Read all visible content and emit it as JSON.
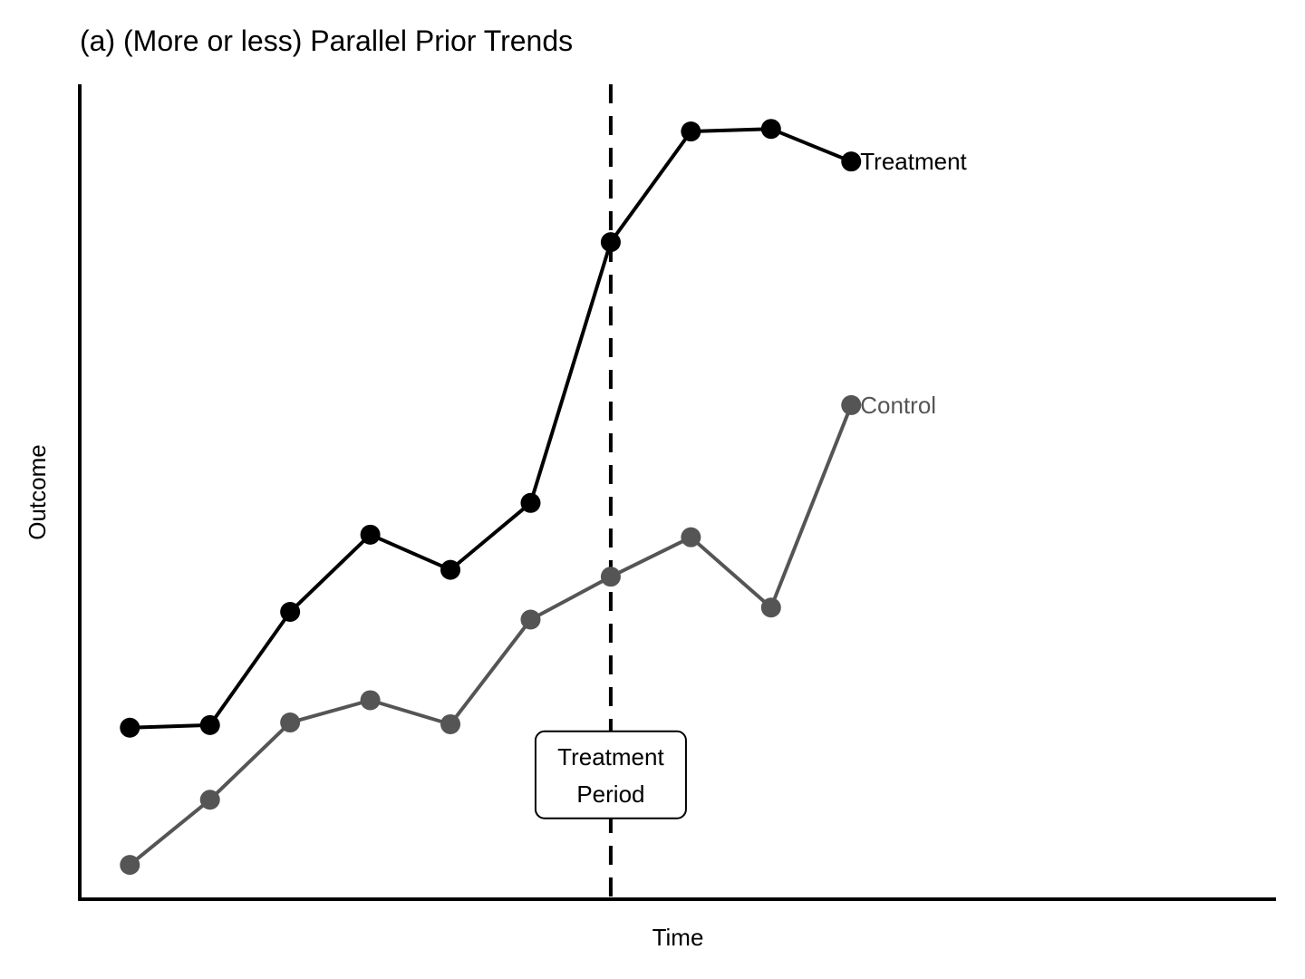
{
  "chart_data": {
    "type": "line",
    "title": "(a) (More or less) Parallel Prior Trends",
    "xlabel": "Time",
    "ylabel": "Outcome",
    "x": [
      1,
      2,
      3,
      4,
      5,
      6,
      7,
      8,
      9,
      10
    ],
    "xlim": [
      0.375,
      15.3
    ],
    "ylim": [
      0.2,
      9.7
    ],
    "grid": false,
    "legend": "none",
    "treatment_start": 7,
    "annotation": {
      "lines": [
        "Treatment",
        "Period"
      ],
      "x": 7,
      "y": 1.65
    },
    "series": [
      {
        "name": "Treatment",
        "values": [
          2.2,
          2.23,
          3.55,
          4.45,
          4.04,
          4.82,
          7.86,
          9.15,
          9.18,
          8.8
        ],
        "color": "#000000"
      },
      {
        "name": "Control",
        "values": [
          0.6,
          1.36,
          2.26,
          2.52,
          2.24,
          3.46,
          3.96,
          4.42,
          3.6,
          5.96
        ],
        "color": "#555555"
      }
    ]
  }
}
